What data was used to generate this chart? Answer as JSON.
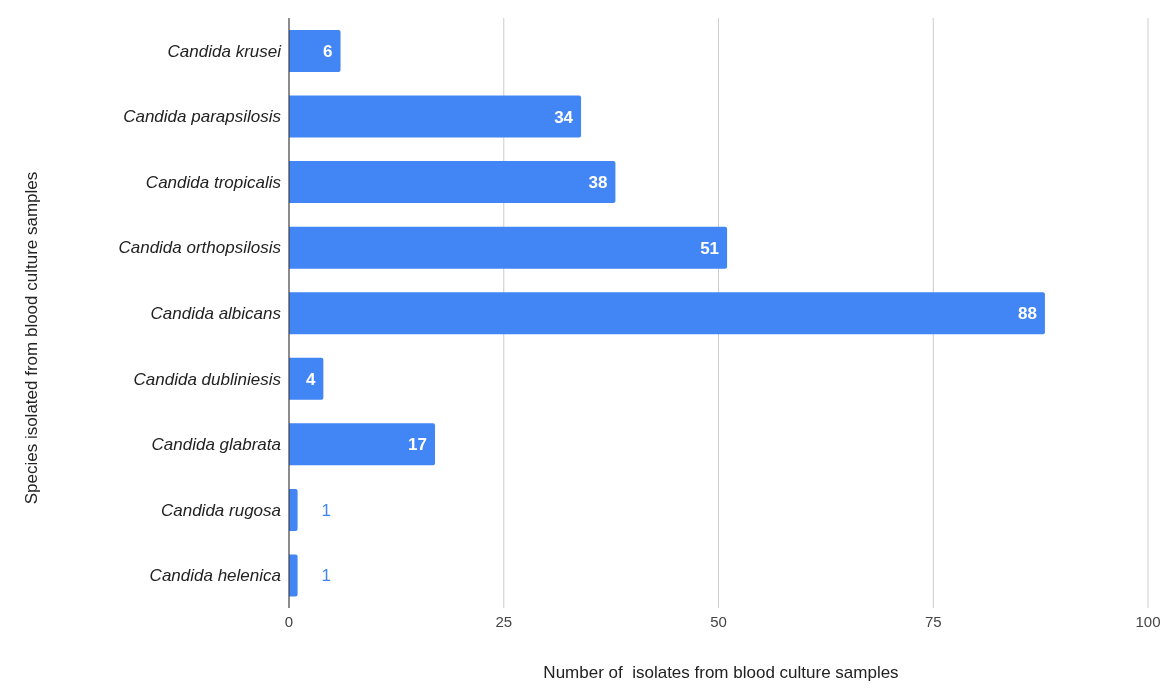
{
  "chart_data": {
    "type": "bar",
    "orientation": "horizontal",
    "xlabel": "Number of  isolates from blood culture samples",
    "ylabel": "Species isolated from blood culture samples",
    "categories": [
      "Candida krusei",
      "Candida parapsilosis",
      "Candida tropicalis",
      "Candida orthopsilosis",
      "Candida albicans",
      "Candida dubliniesis",
      "Candida glabrata",
      "Candida rugosa",
      "Candida helenica"
    ],
    "values": [
      6,
      34,
      38,
      51,
      88,
      4,
      17,
      1,
      1
    ],
    "color": "#4285f4",
    "xlim": [
      0,
      100
    ],
    "xticks": [
      0,
      25,
      50,
      75,
      100
    ],
    "grid": "x",
    "data_labels": true
  }
}
